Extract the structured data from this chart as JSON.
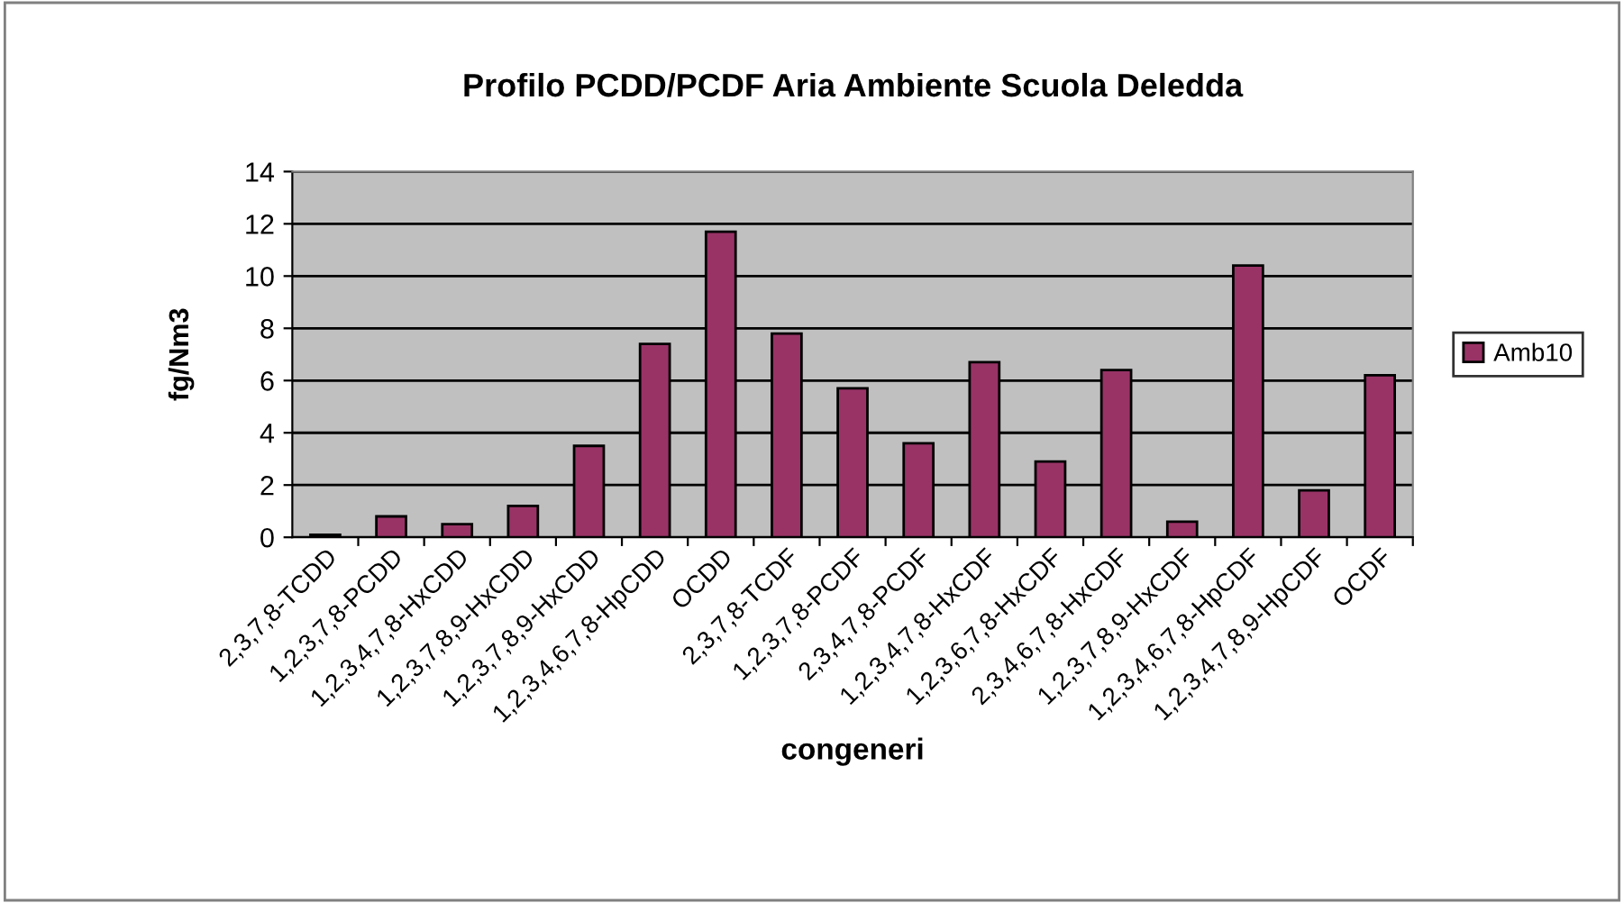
{
  "chart_data": {
    "type": "bar",
    "title": "Profilo PCDD/PCDF Aria Ambiente Scuola Deledda",
    "xlabel": "congeneri",
    "ylabel": "fg/Nm3",
    "categories": [
      "2,3,7,8-TCDD",
      "1,2,3,7,8-PCDD",
      "1,2,3,4,7,8-HxCDD",
      "1,2,3,7,8,9-HxCDD",
      "1,2,3,7,8,9-HxCDD",
      "1,2,3,4,6,7,8-HpCDD",
      "OCDD",
      "2,3,7,8-TCDF",
      "1,2,3,7,8-PCDF",
      "2,3,4,7,8-PCDF",
      "1,2,3,4,7,8-HxCDF",
      "1,2,3,6,7,8-HxCDF",
      "2,3,4,6,7,8-HxCDF",
      "1,2,3,7,8,9-HxCDF",
      "1,2,3,4,6,7,8-HpCDF",
      "1,2,3,4,7,8,9-HpCDF",
      "OCDF"
    ],
    "series": [
      {
        "name": "Amb10",
        "color": "#993366",
        "values": [
          0.1,
          0.8,
          0.5,
          1.2,
          3.5,
          7.4,
          11.7,
          7.8,
          5.7,
          3.6,
          6.7,
          2.9,
          6.4,
          0.6,
          10.4,
          1.8,
          6.2
        ]
      }
    ],
    "ylim": [
      0,
      14
    ],
    "yticks": [
      0,
      2,
      4,
      6,
      8,
      10,
      12,
      14
    ],
    "grid": "y",
    "legend": "right"
  }
}
